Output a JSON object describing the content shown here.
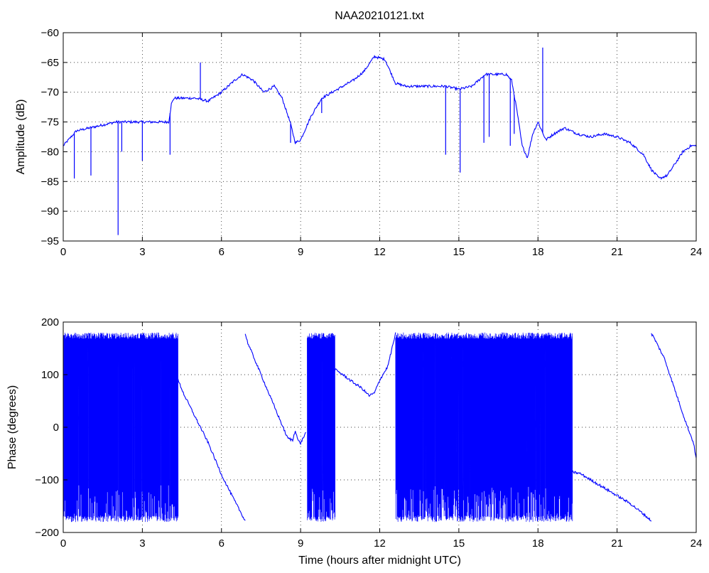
{
  "figure": {
    "title": "NAA20210121.txt"
  },
  "colors": {
    "series": "#0000ff",
    "axes": "#000000",
    "background": "#ffffff"
  },
  "chart_data": [
    {
      "type": "line",
      "title": "NAA20210121.txt",
      "xlabel": "",
      "ylabel": "Amplitude (dB)",
      "xlim": [
        0,
        24
      ],
      "ylim": [
        -95,
        -60
      ],
      "xticks": [
        0,
        3,
        6,
        9,
        12,
        15,
        18,
        21,
        24
      ],
      "yticks": [
        -95,
        -90,
        -85,
        -80,
        -75,
        -70,
        -65,
        -60
      ],
      "grid": true,
      "series": [
        {
          "x": [
            0,
            0.2,
            0.5,
            1.0,
            1.5,
            2.0,
            2.5,
            3.0,
            3.5,
            4.0,
            4.1,
            4.2,
            4.5,
            5.0,
            5.5,
            6.0,
            6.5,
            6.8,
            7.2,
            7.6,
            8.0,
            8.3,
            8.6,
            8.8,
            9.0,
            9.4,
            9.8,
            10.2,
            10.6,
            11.0,
            11.4,
            11.8,
            12.2,
            12.6,
            13.0,
            13.5,
            14.0,
            14.5,
            15.0,
            15.5,
            16.0,
            16.4,
            16.8,
            17.0,
            17.2,
            17.4,
            17.6,
            17.8,
            18.0,
            18.3,
            18.6,
            19.0,
            19.5,
            20.0,
            20.5,
            21.0,
            21.5,
            22.0,
            22.3,
            22.6,
            22.9,
            23.2,
            23.5,
            23.8,
            24.0
          ],
          "values": [
            -79,
            -78,
            -76.5,
            -76,
            -75.5,
            -75,
            -75,
            -75,
            -75,
            -75,
            -72,
            -71,
            -71,
            -71,
            -71.5,
            -70,
            -68,
            -67,
            -68,
            -70,
            -69,
            -71,
            -75,
            -78.5,
            -78,
            -74,
            -71,
            -70,
            -69,
            -68,
            -66.5,
            -64,
            -64.5,
            -68.5,
            -69,
            -69,
            -69,
            -69,
            -69.5,
            -69,
            -67,
            -67,
            -67,
            -68,
            -73,
            -79,
            -81,
            -77,
            -75,
            -78,
            -77,
            -76,
            -77,
            -77.5,
            -77,
            -77.5,
            -78.5,
            -80.5,
            -83,
            -84.5,
            -84,
            -82,
            -80,
            -79,
            -79
          ]
        }
      ],
      "spikes": [
        {
          "x": 0.42,
          "min": -84.5
        },
        {
          "x": 1.05,
          "min": -84
        },
        {
          "x": 2.08,
          "min": -94
        },
        {
          "x": 2.22,
          "min": -80
        },
        {
          "x": 3.0,
          "min": -81.5
        },
        {
          "x": 4.05,
          "min": -80.5
        },
        {
          "x": 5.2,
          "max": -65
        },
        {
          "x": 8.62,
          "min": -78.5
        },
        {
          "x": 9.8,
          "min": -73.5
        },
        {
          "x": 14.5,
          "min": -80.5
        },
        {
          "x": 15.05,
          "min": -83.5
        },
        {
          "x": 15.95,
          "min": -78.5
        },
        {
          "x": 16.15,
          "min": -77.5
        },
        {
          "x": 16.95,
          "min": -79
        },
        {
          "x": 17.1,
          "min": -77
        },
        {
          "x": 18.18,
          "max": -62.5
        }
      ]
    },
    {
      "type": "line",
      "title": "",
      "xlabel": "Time (hours after midnight UTC)",
      "ylabel": "Phase (degrees)",
      "xlim": [
        0,
        24
      ],
      "ylim": [
        -200,
        200
      ],
      "xticks": [
        0,
        3,
        6,
        9,
        12,
        15,
        18,
        21,
        24
      ],
      "yticks": [
        -200,
        -100,
        0,
        100,
        200
      ],
      "grid": true,
      "wrap_regions": [
        {
          "start": 0.0,
          "end": 4.35,
          "low": -180,
          "high": 180
        },
        {
          "start": 9.25,
          "end": 10.3,
          "low": -180,
          "high": 180
        },
        {
          "start": 12.6,
          "end": 19.1,
          "low": -180,
          "high": 180
        },
        {
          "start": 19.1,
          "end": 19.3,
          "low": -180,
          "high": 180
        }
      ],
      "series": [
        {
          "x": [
            4.35,
            4.6,
            5.0,
            5.5,
            6.0,
            6.5,
            6.9
          ],
          "values": [
            90,
            60,
            20,
            -30,
            -90,
            -140,
            -178
          ]
        },
        {
          "x": [
            6.9,
            7.0,
            7.5,
            8.0,
            8.5,
            8.7,
            8.8,
            8.9,
            9.0,
            9.2
          ],
          "values": [
            178,
            160,
            100,
            40,
            -20,
            -25,
            -5,
            -25,
            -30,
            -10
          ]
        },
        {
          "x": [
            10.3,
            10.6,
            11.0,
            11.3,
            11.6,
            11.8,
            12.0,
            12.3,
            12.6
          ],
          "values": [
            110,
            100,
            85,
            75,
            60,
            65,
            90,
            115,
            178
          ]
        },
        {
          "x": [
            19.3,
            19.6,
            20.0,
            20.5,
            21.0,
            21.5,
            22.0,
            22.3
          ],
          "values": [
            -85,
            -88,
            -100,
            -115,
            -130,
            -145,
            -165,
            -178
          ]
        },
        {
          "x": [
            22.3,
            22.4,
            22.8,
            23.2,
            23.6,
            23.9,
            24.0
          ],
          "values": [
            178,
            170,
            130,
            70,
            10,
            -30,
            -60
          ]
        }
      ]
    }
  ]
}
